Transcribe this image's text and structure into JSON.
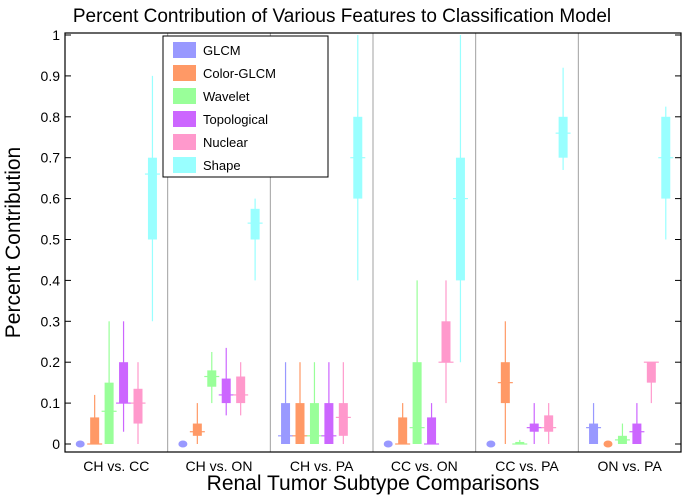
{
  "chart_data": {
    "type": "box",
    "title": "Percent Contribution of Various Features to Classification Model",
    "xlabel": "Renal Tumor Subtype Comparisons",
    "ylabel": "Percent Contribution",
    "ylim": [
      0,
      1
    ],
    "yticks": [
      "0",
      "0.1",
      "0.2",
      "0.3",
      "0.4",
      "0.5",
      "0.6",
      "0.7",
      "0.8",
      "0.9",
      "1"
    ],
    "categories": [
      "CH vs. CC",
      "CH vs. ON",
      "CH vs. PA",
      "CC vs. ON",
      "CC vs. PA",
      "ON vs. PA"
    ],
    "legend_position": "top-left",
    "series": [
      {
        "name": "GLCM",
        "color": "#9999ff",
        "boxes": [
          {
            "min": 0,
            "q1": 0,
            "median": 0,
            "q3": 0,
            "max": 0,
            "degenerate": true
          },
          {
            "min": 0,
            "q1": 0,
            "median": 0,
            "q3": 0,
            "max": 0,
            "degenerate": true
          },
          {
            "min": 0,
            "q1": 0,
            "median": 0.02,
            "q3": 0.1,
            "max": 0.2
          },
          {
            "min": 0,
            "q1": 0,
            "median": 0,
            "q3": 0,
            "max": 0,
            "degenerate": true
          },
          {
            "min": 0,
            "q1": 0,
            "median": 0,
            "q3": 0,
            "max": 0,
            "degenerate": true
          },
          {
            "min": 0,
            "q1": 0,
            "median": 0.04,
            "q3": 0.05,
            "max": 0.1
          }
        ]
      },
      {
        "name": "Color-GLCM",
        "color": "#ff9966",
        "boxes": [
          {
            "min": 0,
            "q1": 0,
            "median": 0,
            "q3": 0.065,
            "max": 0.12
          },
          {
            "min": 0,
            "q1": 0.02,
            "median": 0.03,
            "q3": 0.05,
            "max": 0.1
          },
          {
            "min": 0,
            "q1": 0,
            "median": 0.02,
            "q3": 0.1,
            "max": 0.2
          },
          {
            "min": 0,
            "q1": 0,
            "median": 0,
            "q3": 0.065,
            "max": 0.1
          },
          {
            "min": 0,
            "q1": 0.1,
            "median": 0.15,
            "q3": 0.2,
            "max": 0.3
          },
          {
            "min": 0,
            "q1": 0,
            "median": 0,
            "q3": 0,
            "max": 0,
            "degenerate": true
          }
        ]
      },
      {
        "name": "Wavelet",
        "color": "#99ff99",
        "boxes": [
          {
            "min": 0,
            "q1": 0,
            "median": 0.08,
            "q3": 0.15,
            "max": 0.3
          },
          {
            "min": 0.1,
            "q1": 0.14,
            "median": 0.165,
            "q3": 0.18,
            "max": 0.225
          },
          {
            "min": 0,
            "q1": 0,
            "median": 0.02,
            "q3": 0.1,
            "max": 0.2
          },
          {
            "min": 0,
            "q1": 0,
            "median": 0.04,
            "q3": 0.2,
            "max": 0.4
          },
          {
            "min": 0,
            "q1": 0,
            "median": 0,
            "q3": 0.005,
            "max": 0.01
          },
          {
            "min": 0,
            "q1": 0,
            "median": 0.01,
            "q3": 0.02,
            "max": 0.05
          }
        ]
      },
      {
        "name": "Topological",
        "color": "#cc66ff",
        "boxes": [
          {
            "min": 0.03,
            "q1": 0.1,
            "median": 0.1,
            "q3": 0.2,
            "max": 0.3
          },
          {
            "min": 0.07,
            "q1": 0.1,
            "median": 0.12,
            "q3": 0.16,
            "max": 0.235
          },
          {
            "min": 0,
            "q1": 0,
            "median": 0.02,
            "q3": 0.1,
            "max": 0.2
          },
          {
            "min": 0,
            "q1": 0,
            "median": 0,
            "q3": 0.065,
            "max": 0.1
          },
          {
            "min": 0,
            "q1": 0.03,
            "median": 0.04,
            "q3": 0.05,
            "max": 0.1
          },
          {
            "min": 0,
            "q1": 0,
            "median": 0.03,
            "q3": 0.05,
            "max": 0.1
          }
        ]
      },
      {
        "name": "Nuclear",
        "color": "#ff99cc",
        "boxes": [
          {
            "min": 0,
            "q1": 0.05,
            "median": 0.1,
            "q3": 0.135,
            "max": 0.2
          },
          {
            "min": 0.07,
            "q1": 0.1,
            "median": 0.12,
            "q3": 0.165,
            "max": 0.2
          },
          {
            "min": 0,
            "q1": 0.02,
            "median": 0.065,
            "q3": 0.1,
            "max": 0.2
          },
          {
            "min": 0.1,
            "q1": 0.2,
            "median": 0.2,
            "q3": 0.3,
            "max": 0.4
          },
          {
            "min": 0,
            "q1": 0.03,
            "median": 0.04,
            "q3": 0.07,
            "max": 0.1
          },
          {
            "min": 0.1,
            "q1": 0.15,
            "median": 0.2,
            "q3": 0.2,
            "max": 0.2
          }
        ]
      },
      {
        "name": "Shape",
        "color": "#99ffff",
        "boxes": [
          {
            "min": 0.3,
            "q1": 0.5,
            "median": 0.66,
            "q3": 0.7,
            "max": 0.9
          },
          {
            "min": 0.4,
            "q1": 0.5,
            "median": 0.54,
            "q3": 0.575,
            "max": 0.6
          },
          {
            "min": 0.4,
            "q1": 0.6,
            "median": 0.7,
            "q3": 0.8,
            "max": 1.0
          },
          {
            "min": 0.2,
            "q1": 0.4,
            "median": 0.6,
            "q3": 0.7,
            "max": 1.0
          },
          {
            "min": 0.67,
            "q1": 0.7,
            "median": 0.76,
            "q3": 0.8,
            "max": 0.92
          },
          {
            "min": 0.5,
            "q1": 0.6,
            "median": 0.7,
            "q3": 0.8,
            "max": 0.825
          }
        ]
      }
    ]
  }
}
